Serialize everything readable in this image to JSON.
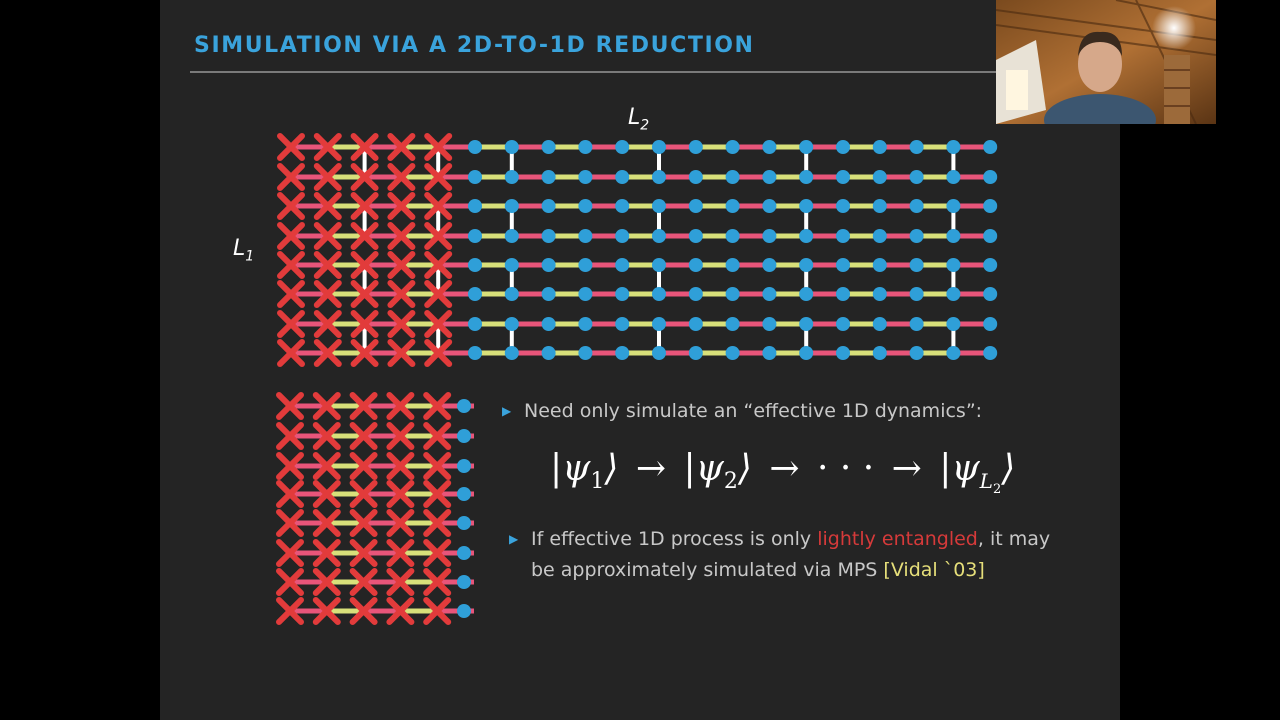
{
  "slide": {
    "title": "SIMULATION VIA A 2D-TO-1D REDUCTION",
    "label_l2": "L",
    "label_l2_sub": "2",
    "label_l1": "L",
    "label_l1_sub": "1",
    "bullet1": "Need only simulate an “effective 1D dynamics”:",
    "equation": {
      "psi": "ψ",
      "sub1": "1",
      "sub2": "2",
      "subL": "L",
      "subL2": "2",
      "arrow": "→",
      "dots": "· · ·"
    },
    "bullet2_part1": "If effective 1D process is only ",
    "bullet2_highlight": "lightly entangled",
    "bullet2_part2": ", it may",
    "bullet2_line2": "be approximately simulated via MPS ",
    "bullet2_cite": "[Vidal `03]"
  },
  "colors": {
    "title": "#3aa3dc",
    "node": "#2f9fd8",
    "bond_pink": "#e8557a",
    "bond_yellow": "#d8e07a",
    "cross": "#e23b3b",
    "vertical_bond": "#ffffff"
  },
  "webcam": {
    "description_icon": "presenter-webcam"
  }
}
